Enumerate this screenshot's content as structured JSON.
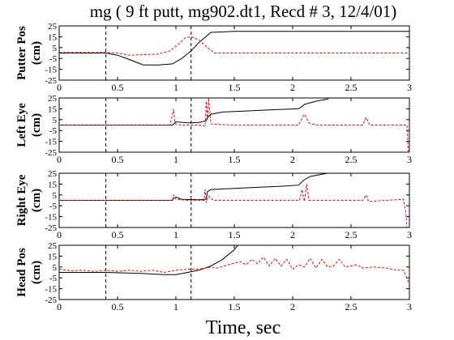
{
  "chart_data": {
    "title": "mg ( 9 ft putt, mg902.dt1, Recd # 3, 12/4/01)",
    "xlabel": "Time, sec",
    "xlim": [
      0,
      3
    ],
    "xticks": [
      "0",
      "0.5",
      "1",
      "1.5",
      "2",
      "2.5",
      "3"
    ],
    "yticks": [
      "25",
      "15",
      "5",
      "-5",
      "-15",
      "-25"
    ],
    "event_lines_x": [
      0.4,
      1.13
    ],
    "colors": {
      "solid": "#000000",
      "dashed": "#ff0000"
    },
    "panels": [
      {
        "type": "line",
        "ylabel_line1": "Putter Pos",
        "ylabel_line2": "(cm)",
        "ylim": [
          -25,
          25
        ],
        "series": [
          {
            "style": "solid",
            "points": [
              [
                0,
                0
              ],
              [
                0.4,
                0
              ],
              [
                0.5,
                -2
              ],
              [
                0.6,
                -6
              ],
              [
                0.72,
                -11
              ],
              [
                0.85,
                -11
              ],
              [
                0.97,
                -10
              ],
              [
                1.05,
                -5
              ],
              [
                1.13,
                2
              ],
              [
                1.2,
                10
              ],
              [
                1.3,
                19
              ],
              [
                1.5,
                20
              ],
              [
                2.0,
                20
              ],
              [
                2.5,
                20
              ],
              [
                3.0,
                20
              ]
            ]
          },
          {
            "style": "dashed",
            "points": [
              [
                0,
                0.5
              ],
              [
                0.4,
                0.5
              ],
              [
                0.5,
                0
              ],
              [
                0.6,
                -2
              ],
              [
                0.72,
                -1.5
              ],
              [
                0.85,
                -1
              ],
              [
                0.95,
                2
              ],
              [
                1.02,
                8
              ],
              [
                1.08,
                14
              ],
              [
                1.13,
                15
              ],
              [
                1.2,
                12
              ],
              [
                1.27,
                5
              ],
              [
                1.33,
                0
              ],
              [
                1.5,
                0
              ],
              [
                3.0,
                0
              ]
            ]
          }
        ]
      },
      {
        "type": "line",
        "ylabel_line1": "Left Eye",
        "ylabel_line2": "(cm)",
        "ylim": [
          -25,
          25
        ],
        "series": [
          {
            "style": "solid",
            "points": [
              [
                0,
                0
              ],
              [
                0.97,
                0
              ],
              [
                0.98,
                1
              ],
              [
                1.0,
                3
              ],
              [
                1.1,
                2
              ],
              [
                1.2,
                2.5
              ],
              [
                1.26,
                4
              ],
              [
                1.27,
                7
              ],
              [
                1.3,
                10
              ],
              [
                1.4,
                12
              ],
              [
                1.6,
                13
              ],
              [
                1.8,
                14
              ],
              [
                2.05,
                15
              ],
              [
                2.08,
                17
              ],
              [
                2.1,
                19
              ],
              [
                2.2,
                22
              ],
              [
                2.3,
                24
              ],
              [
                2.31,
                25
              ]
            ]
          },
          {
            "style": "dashed",
            "points": [
              [
                0,
                0
              ],
              [
                0.95,
                0
              ],
              [
                0.98,
                15
              ],
              [
                0.99,
                3
              ],
              [
                1.0,
                1
              ],
              [
                1.05,
                0
              ],
              [
                1.2,
                0
              ],
              [
                1.25,
                -1
              ],
              [
                1.26,
                22
              ],
              [
                1.27,
                5
              ],
              [
                1.28,
                25
              ],
              [
                1.3,
                1
              ],
              [
                1.5,
                0
              ],
              [
                2.05,
                0
              ],
              [
                2.1,
                10
              ],
              [
                2.14,
                2
              ],
              [
                2.2,
                0
              ],
              [
                2.6,
                0
              ],
              [
                2.63,
                7
              ],
              [
                2.66,
                0
              ],
              [
                2.98,
                0
              ],
              [
                2.99,
                -25
              ]
            ]
          }
        ]
      },
      {
        "type": "line",
        "ylabel_line1": "Right Eye",
        "ylabel_line2": "(cm)",
        "ylim": [
          -25,
          25
        ],
        "series": [
          {
            "style": "solid",
            "points": [
              [
                0,
                0
              ],
              [
                0.97,
                0
              ],
              [
                0.98,
                2
              ],
              [
                1.0,
                3
              ],
              [
                1.05,
                1
              ],
              [
                1.2,
                0.5
              ],
              [
                1.26,
                1
              ],
              [
                1.27,
                8
              ],
              [
                1.3,
                10
              ],
              [
                1.5,
                11
              ],
              [
                1.7,
                12
              ],
              [
                1.9,
                13
              ],
              [
                2.05,
                14
              ],
              [
                2.1,
                19
              ],
              [
                2.15,
                22
              ],
              [
                2.25,
                24
              ],
              [
                2.3,
                25
              ]
            ]
          },
          {
            "style": "dashed",
            "points": [
              [
                0,
                0
              ],
              [
                0.97,
                0
              ],
              [
                0.98,
                5
              ],
              [
                1.0,
                1
              ],
              [
                1.1,
                0
              ],
              [
                1.24,
                0
              ],
              [
                1.25,
                10
              ],
              [
                1.26,
                -2
              ],
              [
                1.28,
                4
              ],
              [
                1.32,
                0
              ],
              [
                1.5,
                0
              ],
              [
                2.06,
                0
              ],
              [
                2.08,
                10
              ],
              [
                2.1,
                -1
              ],
              [
                2.12,
                15
              ],
              [
                2.14,
                0
              ],
              [
                2.6,
                0
              ],
              [
                2.63,
                5
              ],
              [
                2.65,
                -1
              ],
              [
                2.8,
                0
              ],
              [
                2.95,
                1
              ],
              [
                2.97,
                -12
              ],
              [
                2.98,
                -25
              ]
            ]
          }
        ]
      },
      {
        "type": "line",
        "ylabel_line1": "Head Pos",
        "ylabel_line2": "(cm)",
        "ylim": [
          -25,
          25
        ],
        "series": [
          {
            "style": "solid",
            "points": [
              [
                0,
                0
              ],
              [
                0.4,
                0
              ],
              [
                0.7,
                -1
              ],
              [
                0.9,
                -2
              ],
              [
                1.0,
                -2
              ],
              [
                1.1,
                0
              ],
              [
                1.2,
                2
              ],
              [
                1.3,
                6
              ],
              [
                1.4,
                12
              ],
              [
                1.5,
                21
              ],
              [
                1.53,
                25
              ]
            ]
          },
          {
            "style": "dashed",
            "points": [
              [
                0,
                3
              ],
              [
                0.1,
                1.5
              ],
              [
                0.2,
                2
              ],
              [
                0.3,
                1
              ],
              [
                0.4,
                2
              ],
              [
                0.5,
                1
              ],
              [
                0.6,
                2
              ],
              [
                0.7,
                1
              ],
              [
                0.8,
                2
              ],
              [
                0.9,
                0
              ],
              [
                1.0,
                2
              ],
              [
                1.1,
                3
              ],
              [
                1.2,
                3
              ],
              [
                1.3,
                5
              ],
              [
                1.35,
                4
              ],
              [
                1.45,
                7
              ],
              [
                1.55,
                10
              ],
              [
                1.6,
                7
              ],
              [
                1.65,
                12
              ],
              [
                1.7,
                8
              ],
              [
                1.75,
                14
              ],
              [
                1.8,
                6
              ],
              [
                1.85,
                13
              ],
              [
                1.9,
                6
              ],
              [
                1.95,
                12
              ],
              [
                2.0,
                3
              ],
              [
                2.05,
                7
              ],
              [
                2.1,
                5
              ],
              [
                2.15,
                13
              ],
              [
                2.2,
                4
              ],
              [
                2.25,
                12
              ],
              [
                2.3,
                5
              ],
              [
                2.35,
                6
              ],
              [
                2.4,
                12
              ],
              [
                2.45,
                5
              ],
              [
                2.5,
                6
              ],
              [
                2.55,
                7
              ],
              [
                2.6,
                4
              ],
              [
                2.7,
                5
              ],
              [
                2.8,
                4
              ],
              [
                2.9,
                2
              ],
              [
                2.95,
                2
              ],
              [
                3.0,
                -11
              ]
            ]
          }
        ]
      }
    ]
  }
}
